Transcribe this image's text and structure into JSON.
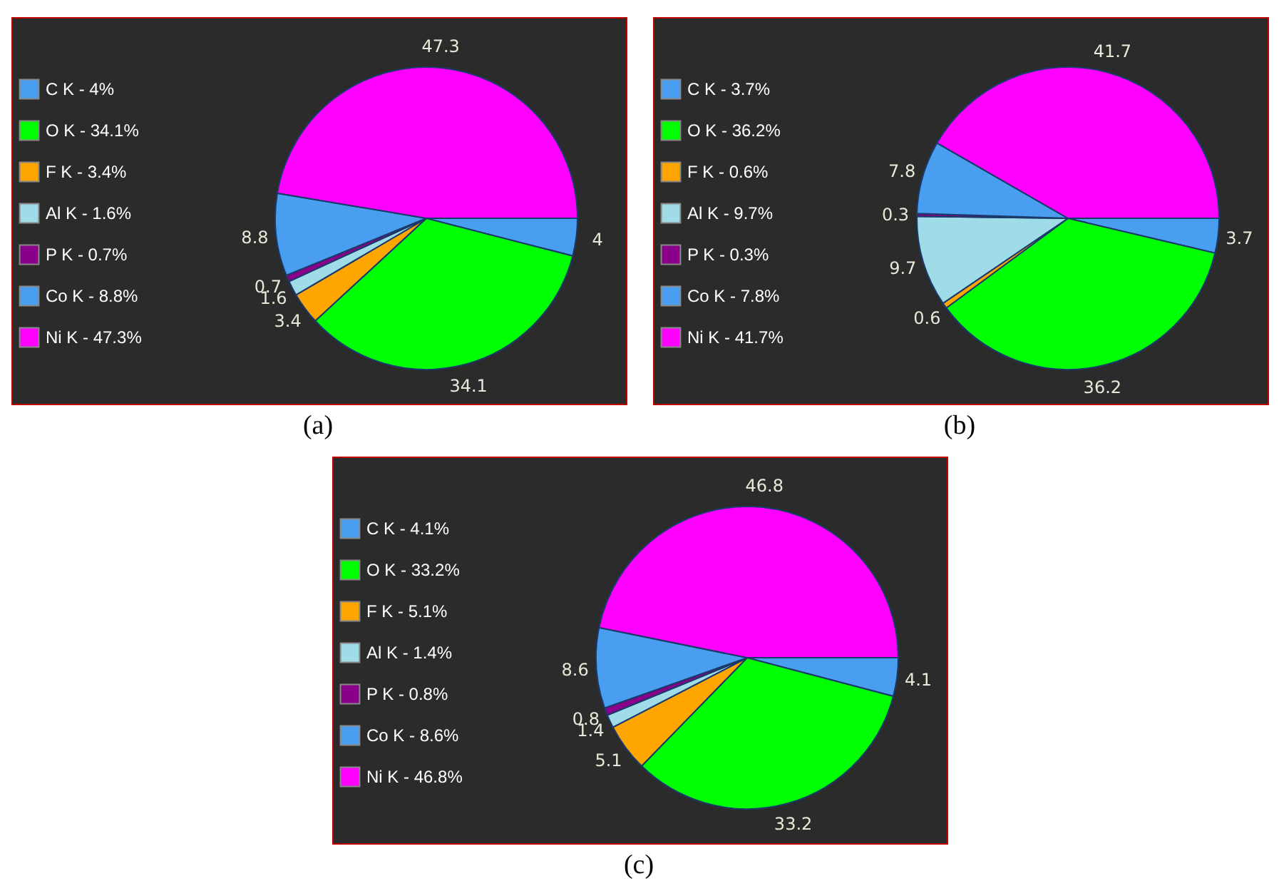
{
  "chart_data": [
    {
      "type": "pie",
      "categories": [
        "C  K - 4%",
        "O  K - 34.1%",
        "F  K - 3.4%",
        "Al K - 1.6%",
        "P  K - 0.7%",
        "Co K - 8.8%",
        "Ni K - 47.3%"
      ],
      "values": [
        4,
        34.1,
        3.4,
        1.6,
        0.7,
        8.8,
        47.3
      ],
      "colors": [
        "#4a9ef0",
        "#00ff00",
        "#ffa500",
        "#a0dce8",
        "#8b008b",
        "#4a9ef0",
        "#ff00ff"
      ],
      "data_labels": true,
      "legend": "left",
      "annotations": [
        "(a)"
      ]
    },
    {
      "type": "pie",
      "categories": [
        "C  K - 3.7%",
        "O  K - 36.2%",
        "F  K - 0.6%",
        "Al K - 9.7%",
        "P  K - 0.3%",
        "Co K - 7.8%",
        "Ni K - 41.7%"
      ],
      "values": [
        3.7,
        36.2,
        0.6,
        9.7,
        0.3,
        7.8,
        41.7
      ],
      "colors": [
        "#4a9ef0",
        "#00ff00",
        "#ffa500",
        "#a0dce8",
        "#8b008b",
        "#4a9ef0",
        "#ff00ff"
      ],
      "data_labels": true,
      "legend": "left",
      "annotations": [
        "(b)"
      ]
    },
    {
      "type": "pie",
      "categories": [
        "C  K - 4.1%",
        "O  K - 33.2%",
        "F  K - 5.1%",
        "Al K - 1.4%",
        "P  K - 0.8%",
        "Co K - 8.6%",
        "Ni K - 46.8%"
      ],
      "values": [
        4.1,
        33.2,
        5.1,
        1.4,
        0.8,
        8.6,
        46.8
      ],
      "colors": [
        "#4a9ef0",
        "#00ff00",
        "#ffa500",
        "#a0dce8",
        "#8b008b",
        "#4a9ef0",
        "#ff00ff"
      ],
      "data_labels": true,
      "legend": "left",
      "annotations": [
        "(c)"
      ]
    }
  ]
}
